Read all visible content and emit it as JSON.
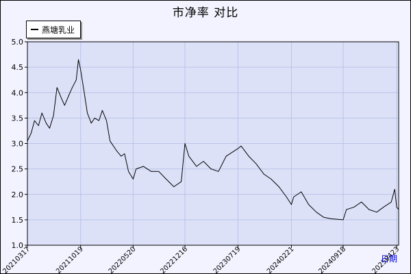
{
  "chart_data": {
    "type": "line",
    "title": "市净率 对比",
    "xlabel": "日期",
    "ylabel": "",
    "ylim": [
      1.0,
      5.0
    ],
    "yticks": [
      "1.0",
      "1.5",
      "2.0",
      "2.5",
      "3.0",
      "3.5",
      "4.0",
      "4.5",
      "5.0"
    ],
    "xticks": [
      "20210317",
      "20211019",
      "20220520",
      "20221216",
      "20230719",
      "20240221",
      "20240918",
      "20250423"
    ],
    "grid": true,
    "legend_position": "top-left",
    "colors": {
      "plot_bg": "#dde1f8",
      "frame_bg": "#f2f3fe",
      "grid": "#b9c4e6",
      "line": "#000000",
      "axis_note": "#0000cc"
    },
    "series": [
      {
        "name": "燕塘乳业",
        "points": [
          [
            "20210317",
            3.05
          ],
          [
            "20210401",
            3.2
          ],
          [
            "20210415",
            3.45
          ],
          [
            "20210501",
            3.35
          ],
          [
            "20210515",
            3.6
          ],
          [
            "20210601",
            3.4
          ],
          [
            "20210615",
            3.3
          ],
          [
            "20210701",
            3.55
          ],
          [
            "20210715",
            4.1
          ],
          [
            "20210801",
            3.9
          ],
          [
            "20210815",
            3.75
          ],
          [
            "20210901",
            3.95
          ],
          [
            "20210915",
            4.1
          ],
          [
            "20211001",
            4.25
          ],
          [
            "20211010",
            4.65
          ],
          [
            "20211019",
            4.45
          ],
          [
            "20211101",
            4.05
          ],
          [
            "20211115",
            3.6
          ],
          [
            "20211201",
            3.4
          ],
          [
            "20211215",
            3.5
          ],
          [
            "20220101",
            3.45
          ],
          [
            "20220115",
            3.65
          ],
          [
            "20220201",
            3.45
          ],
          [
            "20220215",
            3.05
          ],
          [
            "20220301",
            2.95
          ],
          [
            "20220315",
            2.85
          ],
          [
            "20220401",
            2.75
          ],
          [
            "20220415",
            2.8
          ],
          [
            "20220501",
            2.45
          ],
          [
            "20220520",
            2.3
          ],
          [
            "20220601",
            2.5
          ],
          [
            "20220701",
            2.55
          ],
          [
            "20220801",
            2.45
          ],
          [
            "20220901",
            2.45
          ],
          [
            "20221001",
            2.3
          ],
          [
            "20221101",
            2.15
          ],
          [
            "20221201",
            2.25
          ],
          [
            "20221216",
            3.0
          ],
          [
            "20230101",
            2.75
          ],
          [
            "20230201",
            2.55
          ],
          [
            "20230301",
            2.65
          ],
          [
            "20230401",
            2.5
          ],
          [
            "20230501",
            2.45
          ],
          [
            "20230601",
            2.75
          ],
          [
            "20230719",
            2.9
          ],
          [
            "20230801",
            2.95
          ],
          [
            "20230901",
            2.75
          ],
          [
            "20231001",
            2.6
          ],
          [
            "20231101",
            2.4
          ],
          [
            "20231201",
            2.3
          ],
          [
            "20240101",
            2.15
          ],
          [
            "20240201",
            1.95
          ],
          [
            "20240221",
            1.8
          ],
          [
            "20240301",
            1.95
          ],
          [
            "20240401",
            2.05
          ],
          [
            "20240501",
            1.8
          ],
          [
            "20240601",
            1.65
          ],
          [
            "20240701",
            1.55
          ],
          [
            "20240801",
            1.52
          ],
          [
            "20240918",
            1.5
          ],
          [
            "20241001",
            1.7
          ],
          [
            "20241101",
            1.75
          ],
          [
            "20241201",
            1.85
          ],
          [
            "20250101",
            1.7
          ],
          [
            "20250201",
            1.65
          ],
          [
            "20250301",
            1.75
          ],
          [
            "20250401",
            1.85
          ],
          [
            "20250415",
            2.1
          ],
          [
            "20250423",
            1.75
          ],
          [
            "20250501",
            1.7
          ]
        ]
      }
    ]
  }
}
